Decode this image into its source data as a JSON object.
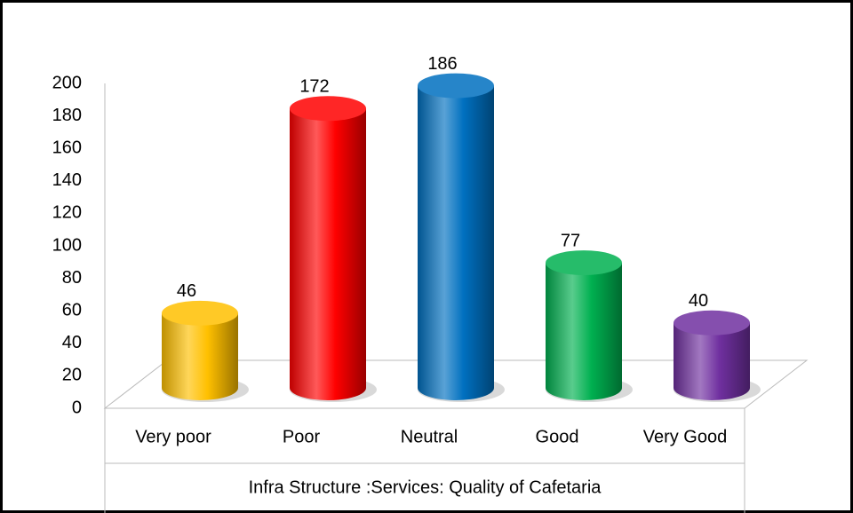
{
  "chart_data": {
    "type": "bar3d",
    "x_label": "Infra Structure :Services: Quality of Cafetaria",
    "categories": [
      "Very poor",
      "Poor",
      "Neutral",
      "Good",
      "Very Good"
    ],
    "values": [
      46,
      172,
      186,
      77,
      40
    ],
    "colors": [
      "#ffc000",
      "#ff0000",
      "#0070c0",
      "#00b050",
      "#7030a0"
    ],
    "ylim": [
      0,
      200
    ],
    "yticks": [
      0,
      20,
      40,
      60,
      80,
      100,
      120,
      140,
      160,
      180,
      200
    ],
    "grid": false
  }
}
